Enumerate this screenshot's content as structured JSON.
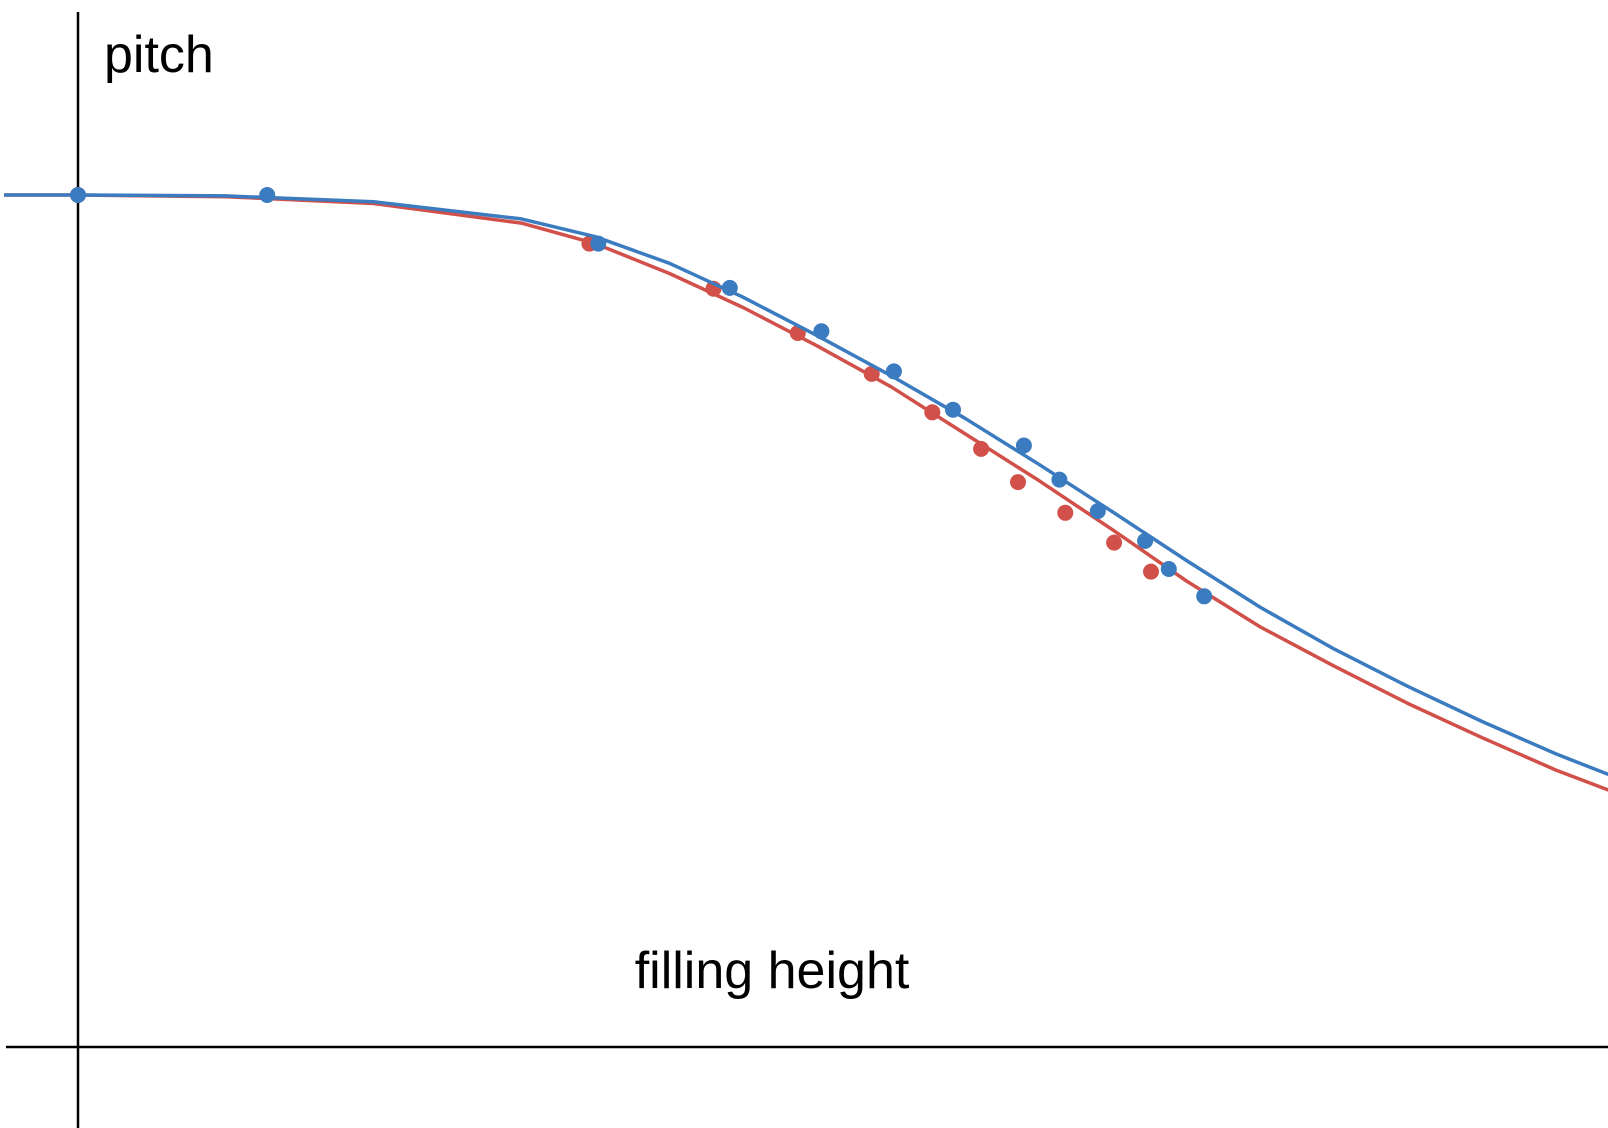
{
  "chart_data": {
    "type": "scatter",
    "title": "",
    "xlabel": "filling height",
    "ylabel": "pitch",
    "grid": false,
    "legend": "none",
    "xlim": [
      -0.05,
      1.05
    ],
    "ylim": [
      0,
      1.1
    ],
    "series": [
      {
        "color": "#d2504a",
        "points": [
          {
            "x": 0.0,
            "y": 1.0
          },
          {
            "x": 0.346,
            "y": 0.943
          },
          {
            "x": 0.43,
            "y": 0.89
          },
          {
            "x": 0.487,
            "y": 0.838
          },
          {
            "x": 0.537,
            "y": 0.79
          },
          {
            "x": 0.578,
            "y": 0.745
          },
          {
            "x": 0.611,
            "y": 0.702
          },
          {
            "x": 0.636,
            "y": 0.663
          },
          {
            "x": 0.668,
            "y": 0.627
          },
          {
            "x": 0.701,
            "y": 0.592
          },
          {
            "x": 0.726,
            "y": 0.558
          }
        ],
        "curve": [
          {
            "x": -0.05,
            "y": 1.0
          },
          {
            "x": 0.0,
            "y": 1.0
          },
          {
            "x": 0.1,
            "y": 0.998
          },
          {
            "x": 0.2,
            "y": 0.99
          },
          {
            "x": 0.3,
            "y": 0.967
          },
          {
            "x": 0.35,
            "y": 0.943
          },
          {
            "x": 0.4,
            "y": 0.908
          },
          {
            "x": 0.45,
            "y": 0.868
          },
          {
            "x": 0.5,
            "y": 0.823
          },
          {
            "x": 0.55,
            "y": 0.775
          },
          {
            "x": 0.6,
            "y": 0.72
          },
          {
            "x": 0.65,
            "y": 0.665
          },
          {
            "x": 0.7,
            "y": 0.607
          },
          {
            "x": 0.75,
            "y": 0.547
          },
          {
            "x": 0.8,
            "y": 0.493
          },
          {
            "x": 0.85,
            "y": 0.447
          },
          {
            "x": 0.9,
            "y": 0.403
          },
          {
            "x": 0.95,
            "y": 0.363
          },
          {
            "x": 1.0,
            "y": 0.325
          },
          {
            "x": 1.05,
            "y": 0.292
          }
        ]
      },
      {
        "color": "#3b7bbf",
        "points": [
          {
            "x": 0.0,
            "y": 1.0
          },
          {
            "x": 0.128,
            "y": 1.0
          },
          {
            "x": 0.352,
            "y": 0.943
          },
          {
            "x": 0.441,
            "y": 0.891
          },
          {
            "x": 0.503,
            "y": 0.84
          },
          {
            "x": 0.552,
            "y": 0.793
          },
          {
            "x": 0.592,
            "y": 0.748
          },
          {
            "x": 0.64,
            "y": 0.706
          },
          {
            "x": 0.664,
            "y": 0.666
          },
          {
            "x": 0.69,
            "y": 0.629
          },
          {
            "x": 0.722,
            "y": 0.594
          },
          {
            "x": 0.738,
            "y": 0.561
          },
          {
            "x": 0.762,
            "y": 0.529
          }
        ],
        "curve": [
          {
            "x": -0.05,
            "y": 1.0
          },
          {
            "x": 0.0,
            "y": 1.0
          },
          {
            "x": 0.1,
            "y": 0.999
          },
          {
            "x": 0.2,
            "y": 0.992
          },
          {
            "x": 0.3,
            "y": 0.972
          },
          {
            "x": 0.35,
            "y": 0.951
          },
          {
            "x": 0.4,
            "y": 0.92
          },
          {
            "x": 0.45,
            "y": 0.88
          },
          {
            "x": 0.5,
            "y": 0.835
          },
          {
            "x": 0.55,
            "y": 0.788
          },
          {
            "x": 0.6,
            "y": 0.738
          },
          {
            "x": 0.65,
            "y": 0.684
          },
          {
            "x": 0.7,
            "y": 0.628
          },
          {
            "x": 0.75,
            "y": 0.571
          },
          {
            "x": 0.8,
            "y": 0.516
          },
          {
            "x": 0.85,
            "y": 0.467
          },
          {
            "x": 0.9,
            "y": 0.423
          },
          {
            "x": 0.95,
            "y": 0.382
          },
          {
            "x": 1.0,
            "y": 0.344
          },
          {
            "x": 1.05,
            "y": 0.31
          }
        ]
      }
    ]
  }
}
